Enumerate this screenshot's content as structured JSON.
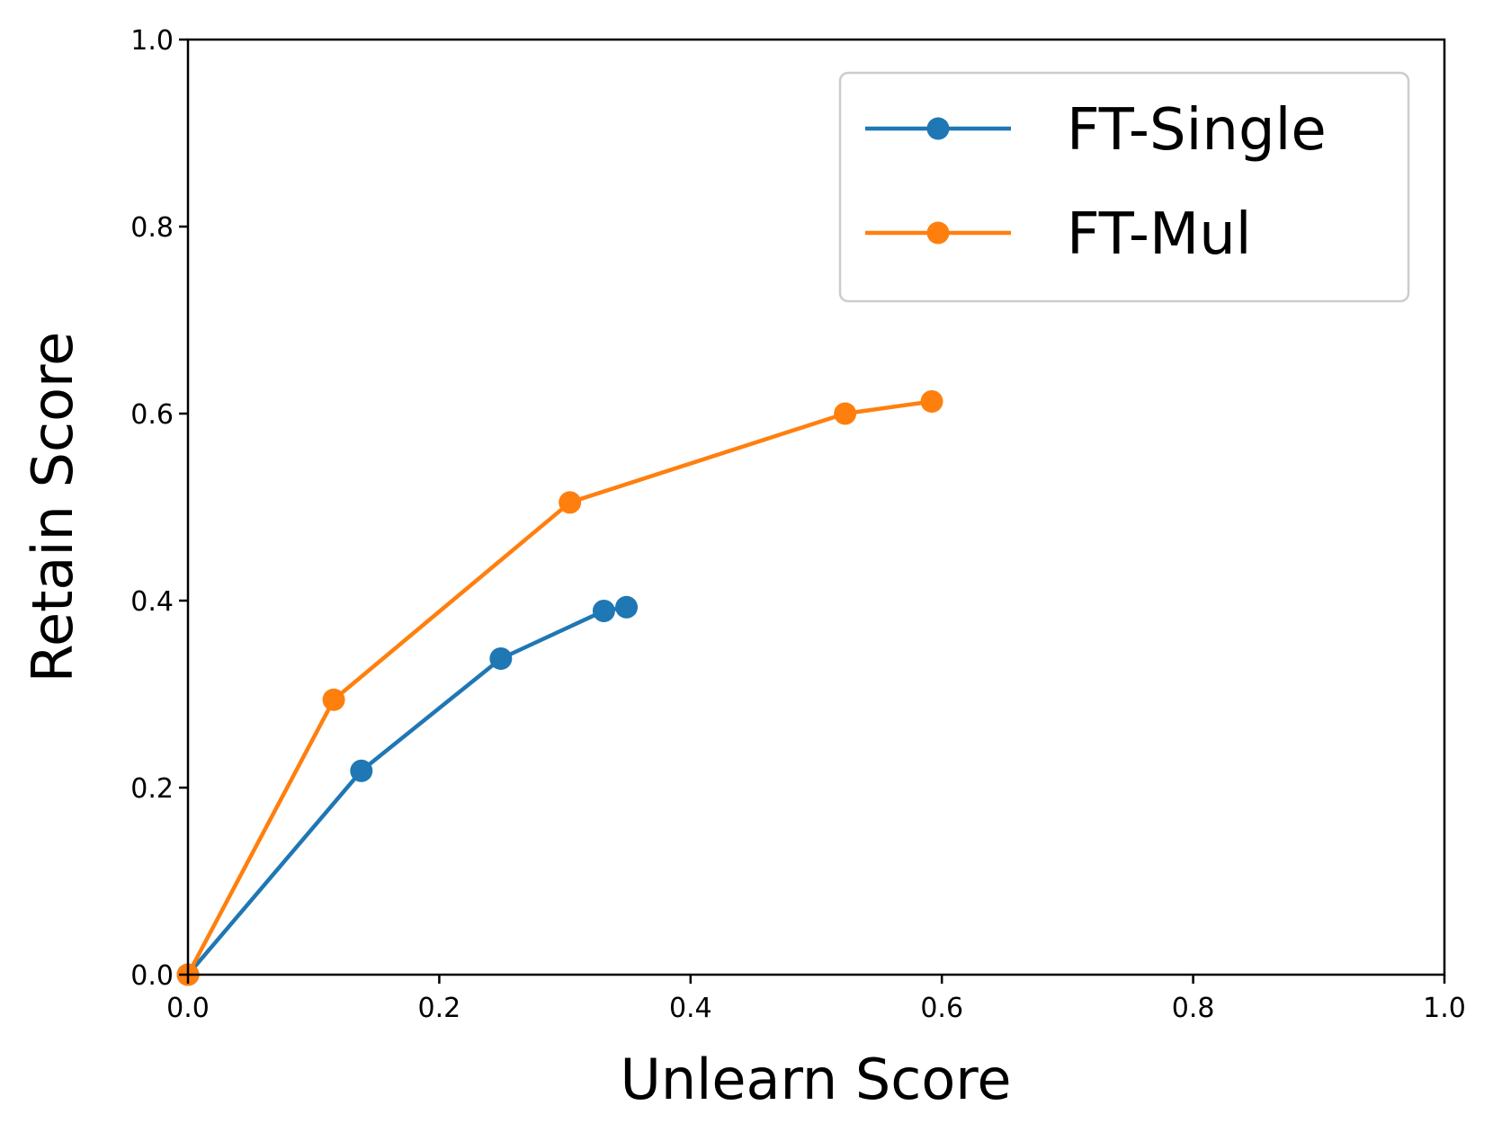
{
  "chart_data": {
    "type": "line",
    "title": "",
    "xlabel": "Unlearn Score",
    "ylabel": "Retain Score",
    "xlim": [
      0.0,
      1.0
    ],
    "ylim": [
      0.0,
      1.0
    ],
    "xticks": [
      "0.0",
      "0.2",
      "0.4",
      "0.6",
      "0.8",
      "1.0"
    ],
    "yticks": [
      "0.0",
      "0.2",
      "0.4",
      "0.6",
      "0.8",
      "1.0"
    ],
    "grid": false,
    "legend_position": "top-right",
    "series": [
      {
        "name": "FT-Single",
        "color": "#1f77b4",
        "marker": "circle",
        "points": [
          {
            "x": 0.0,
            "y": 0.0
          },
          {
            "x": 0.138,
            "y": 0.218
          },
          {
            "x": 0.249,
            "y": 0.338
          },
          {
            "x": 0.331,
            "y": 0.389
          },
          {
            "x": 0.349,
            "y": 0.393
          }
        ]
      },
      {
        "name": "FT-Mul",
        "color": "#ff7f0e",
        "marker": "circle",
        "points": [
          {
            "x": 0.0,
            "y": 0.0
          },
          {
            "x": 0.116,
            "y": 0.294
          },
          {
            "x": 0.304,
            "y": 0.505
          },
          {
            "x": 0.523,
            "y": 0.6
          },
          {
            "x": 0.592,
            "y": 0.613
          }
        ]
      }
    ]
  }
}
